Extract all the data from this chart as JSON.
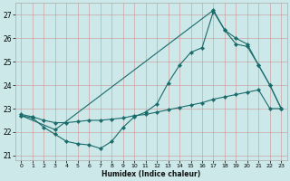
{
  "xlabel": "Humidex (Indice chaleur)",
  "bg_color": "#cce8e8",
  "grid_color": "#cc8888",
  "line_color": "#1a6b6b",
  "xlim": [
    -0.5,
    23.5
  ],
  "ylim": [
    20.8,
    27.5
  ],
  "yticks": [
    21,
    22,
    23,
    24,
    25,
    26,
    27
  ],
  "xticks": [
    0,
    1,
    2,
    3,
    4,
    5,
    6,
    7,
    8,
    9,
    10,
    11,
    12,
    13,
    14,
    15,
    16,
    17,
    18,
    19,
    20,
    21,
    22,
    23
  ],
  "line1_x": [
    0,
    1,
    2,
    3,
    4,
    5,
    6,
    7,
    8,
    9,
    10,
    11,
    12,
    13,
    14,
    15,
    16,
    17,
    18,
    19,
    20,
    21,
    22,
    23
  ],
  "line1_y": [
    22.7,
    22.6,
    22.2,
    21.9,
    21.6,
    21.5,
    21.45,
    21.3,
    21.6,
    22.2,
    22.65,
    22.85,
    23.2,
    24.1,
    24.85,
    25.4,
    25.6,
    27.15,
    26.35,
    25.75,
    25.65,
    24.85,
    24.0,
    23.0
  ],
  "line2_x": [
    0,
    1,
    2,
    3,
    4,
    5,
    6,
    7,
    8,
    9,
    10,
    11,
    12,
    13,
    14,
    15,
    16,
    17,
    18,
    19,
    20,
    21,
    22,
    23
  ],
  "line2_y": [
    22.75,
    22.65,
    22.5,
    22.4,
    22.4,
    22.45,
    22.5,
    22.5,
    22.55,
    22.6,
    22.7,
    22.75,
    22.85,
    22.95,
    23.05,
    23.15,
    23.25,
    23.4,
    23.5,
    23.6,
    23.7,
    23.8,
    23.0,
    23.0
  ],
  "line3_x": [
    0,
    3,
    17,
    18,
    19,
    20,
    21,
    22,
    23
  ],
  "line3_y": [
    22.7,
    22.1,
    27.2,
    26.35,
    26.0,
    25.75,
    24.85,
    24.0,
    23.0
  ]
}
